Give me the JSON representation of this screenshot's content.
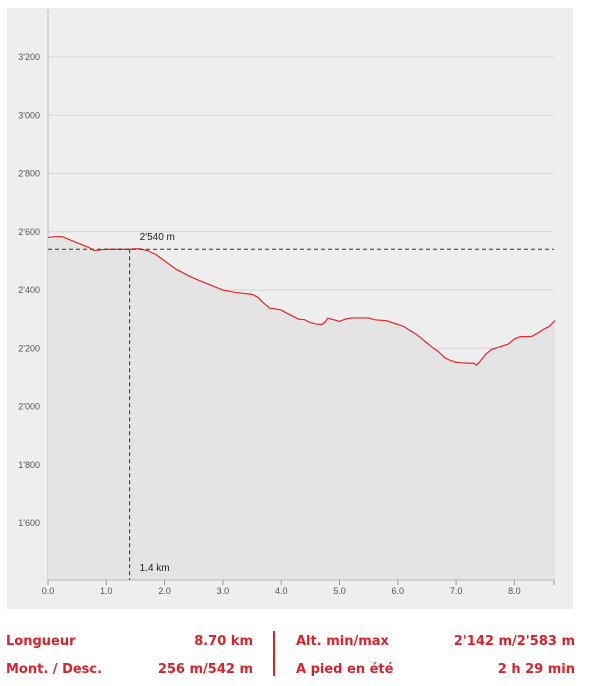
{
  "chart_data": {
    "type": "area",
    "xlabel": "",
    "ylabel": "",
    "xlim": [
      0,
      8.7
    ],
    "ylim": [
      1400,
      3300
    ],
    "x_ticks": [
      "0.0",
      "1.0",
      "2.0",
      "3.0",
      "4.0",
      "5.0",
      "6.0",
      "7.0",
      "8.0"
    ],
    "y_ticks": [
      "1'600",
      "1'800",
      "2'000",
      "2'200",
      "2'400",
      "2'600",
      "2'800",
      "3'000",
      "3'200"
    ],
    "grid": true,
    "line_color": "#e8262b",
    "fill_color": "#e4e4e4",
    "series": [
      {
        "x": [
          0.0,
          0.1,
          0.25,
          0.4,
          0.55,
          0.7,
          0.8,
          0.9,
          1.0,
          1.2,
          1.4,
          1.55,
          1.7,
          1.85,
          2.0,
          2.2,
          2.4,
          2.6,
          2.8,
          3.0,
          3.2,
          3.5,
          3.6,
          3.7,
          3.8,
          3.9,
          4.0,
          4.1,
          4.2,
          4.3,
          4.4,
          4.5,
          4.6,
          4.7,
          4.75,
          4.8,
          4.9,
          5.0,
          5.1,
          5.2,
          5.3,
          5.4,
          5.5,
          5.6,
          5.7,
          5.8,
          5.9,
          6.0,
          6.1,
          6.2,
          6.3,
          6.4,
          6.5,
          6.6,
          6.7,
          6.8,
          6.9,
          7.0,
          7.1,
          7.2,
          7.3,
          7.35,
          7.4,
          7.5,
          7.6,
          7.7,
          7.8,
          7.9,
          8.0,
          8.1,
          8.2,
          8.3,
          8.4,
          8.5,
          8.6,
          8.7
        ],
        "y": [
          2580,
          2583,
          2583,
          2570,
          2558,
          2546,
          2535,
          2538,
          2540,
          2540,
          2540,
          2542,
          2536,
          2522,
          2500,
          2471,
          2450,
          2432,
          2416,
          2400,
          2392,
          2385,
          2375,
          2355,
          2338,
          2335,
          2331,
          2320,
          2310,
          2300,
          2298,
          2288,
          2283,
          2282,
          2290,
          2303,
          2298,
          2292,
          2300,
          2304,
          2304,
          2304,
          2304,
          2298,
          2296,
          2295,
          2288,
          2282,
          2275,
          2262,
          2250,
          2235,
          2218,
          2202,
          2188,
          2168,
          2158,
          2152,
          2150,
          2149,
          2148,
          2142,
          2152,
          2178,
          2195,
          2202,
          2208,
          2215,
          2232,
          2240,
          2240,
          2241,
          2252,
          2265,
          2275,
          2295
        ]
      }
    ],
    "marker": {
      "x": 1.4,
      "y": 2540,
      "x_label": "1.4 km",
      "y_label": "2'540 m"
    }
  },
  "stats": {
    "length_label": "Longueur",
    "length_value": "8.70 km",
    "ascent_label": "Mont. / Desc.",
    "ascent_value": "256 m/542 m",
    "alt_label": "Alt. min/max",
    "alt_value": "2'142 m/2'583 m",
    "time_label": "A pied en été",
    "time_value": "2 h 29 min"
  }
}
